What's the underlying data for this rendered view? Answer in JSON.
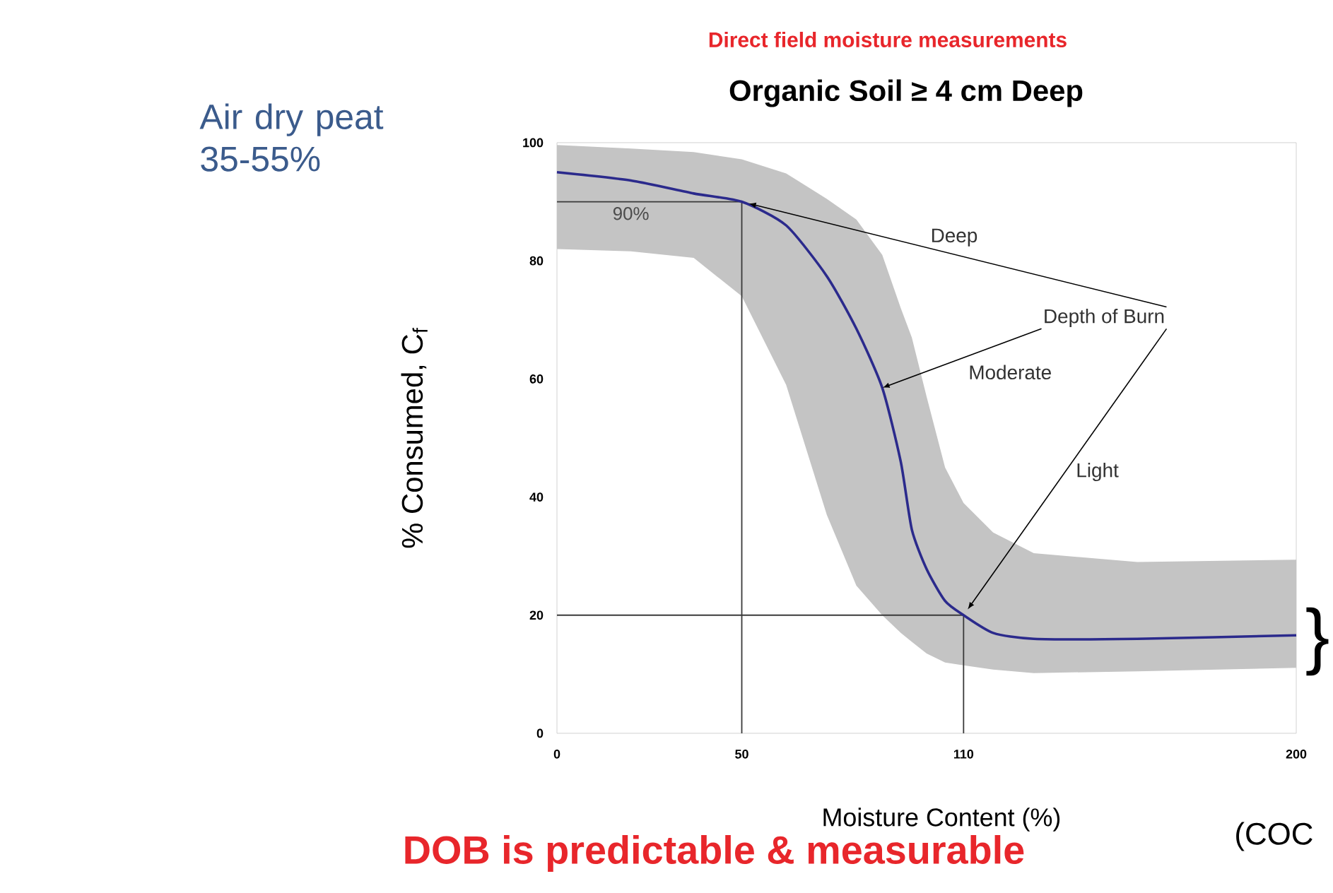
{
  "chart_data": {
    "type": "line",
    "title": "Organic Soil  ≥ 4 cm Deep",
    "subtitle": "Direct field moisture measurements",
    "xlabel": "Moisture Content (%)",
    "ylabel": "% Consumed, C$_{f}$",
    "xlim": [
      0,
      200
    ],
    "ylim": [
      0,
      100
    ],
    "xticks": [
      0,
      50,
      110,
      200
    ],
    "yticks": [
      0,
      20,
      40,
      60,
      80,
      100
    ],
    "series": [
      {
        "color": "#2b2a8c",
        "x": [
          0,
          20,
          37,
          50,
          62,
          73,
          81,
          88,
          93,
          96,
          100,
          105,
          110,
          118,
          129,
          157,
          200
        ],
        "values": [
          95,
          93.6,
          91.4,
          90,
          86,
          77.4,
          68.5,
          58.5,
          46,
          34.5,
          27.8,
          22.4,
          20,
          17,
          16,
          16,
          16.6
        ],
        "lower": [
          82,
          81.6,
          80.5,
          74,
          59,
          37,
          25,
          20,
          17,
          15.5,
          13.5,
          12,
          11.5,
          10.8,
          10.2,
          10.5,
          11.1
        ],
        "upper": [
          99.6,
          99,
          98.4,
          97.2,
          94.8,
          90.5,
          87,
          81,
          72,
          67,
          57,
          45,
          39,
          34,
          30.5,
          29,
          29.4
        ]
      }
    ],
    "ref_lines": [
      {
        "axis": "y",
        "value": 90,
        "label": "90%",
        "color": "#3a3a3a"
      },
      {
        "axis": "x",
        "value": 50,
        "color": "#3a3a3a"
      },
      {
        "axis": "y",
        "value": 20,
        "color": "#3a3a3a"
      },
      {
        "axis": "x",
        "value": 110,
        "color": "#3a3a3a"
      }
    ],
    "annotations": [
      "Air dry peat 35-55%",
      "DOB is predictable & measurable",
      "(COC",
      "}",
      {
        "text": "Depth of Burn",
        "x": 88,
        "y": 58.5
      },
      "Deep",
      "Moderate",
      "Light"
    ]
  }
}
